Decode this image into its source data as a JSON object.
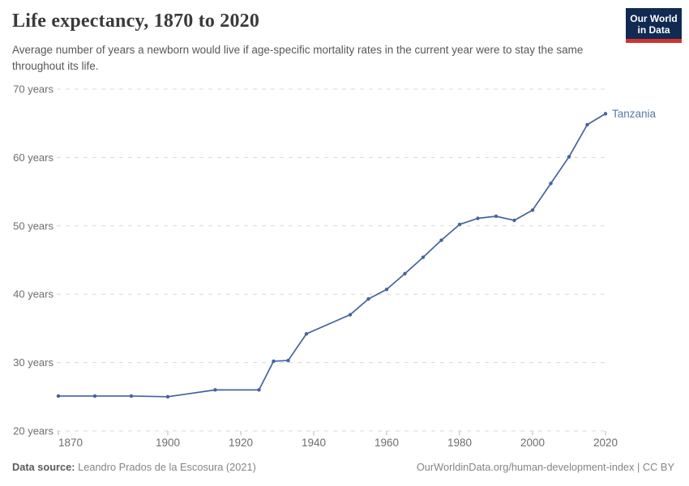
{
  "header": {
    "title": "Life expectancy, 1870 to 2020",
    "subtitle": "Average number of years a newborn would live if age-specific mortality rates in the current year were to stay the same throughout its life.",
    "logo": {
      "line1": "Our World",
      "line2": "in Data"
    }
  },
  "chart_data": {
    "type": "line",
    "title": "Life expectancy, 1870 to 2020",
    "x": [
      1870,
      1880,
      1890,
      1900,
      1913,
      1925,
      1929,
      1933,
      1938,
      1950,
      1955,
      1960,
      1965,
      1970,
      1975,
      1980,
      1985,
      1990,
      1995,
      2000,
      2005,
      2010,
      2015,
      2020
    ],
    "series": [
      {
        "name": "Tanzania",
        "values": [
          25.1,
          25.1,
          25.1,
          25.0,
          26.0,
          26.0,
          30.2,
          30.3,
          34.2,
          37.0,
          39.3,
          40.7,
          43.0,
          45.4,
          47.9,
          50.2,
          51.1,
          51.4,
          50.8,
          52.3,
          56.2,
          60.1,
          64.8,
          66.4
        ],
        "color": "#44639f",
        "label_color": "#5878a8"
      }
    ],
    "x_ticks": [
      1870,
      1900,
      1920,
      1940,
      1960,
      1980,
      2000,
      2020
    ],
    "y_ticks": [
      {
        "value": 20,
        "label": "20 years"
      },
      {
        "value": 30,
        "label": "30 years"
      },
      {
        "value": 40,
        "label": "40 years"
      },
      {
        "value": 50,
        "label": "50 years"
      },
      {
        "value": 60,
        "label": "60 years"
      },
      {
        "value": 70,
        "label": "70 years"
      }
    ],
    "xlim": [
      1870,
      2020
    ],
    "ylim": [
      20,
      70
    ],
    "grid": "horizontal-dashed",
    "legend_position": "end-of-line-label"
  },
  "footer": {
    "source_label": "Data source:",
    "source_value": "Leandro Prados de la Escosura (2021)",
    "attribution": "OurWorldinData.org/human-development-index | CC BY"
  },
  "colors": {
    "line": "#44639f",
    "series_label": "#5878a8",
    "grid": "#d9d9d9",
    "tick": "#b5b5b5",
    "axis_text": "#6e6e6e",
    "logo_bg": "#102a52",
    "logo_stripe": "#cf3430"
  }
}
